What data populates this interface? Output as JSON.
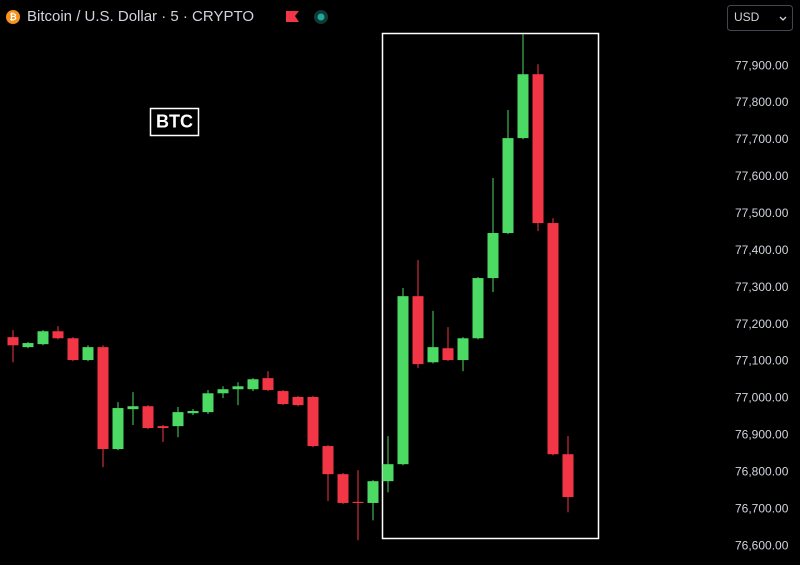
{
  "chart_data": {
    "type": "candlestick",
    "title": "Bitcoin / U.S. Dollar · 5 · CRYPTO",
    "annotation": "BTC",
    "currency": "USD",
    "up_color": "#4cd964",
    "down_color": "#f23645",
    "ylim": [
      76549,
      78079
    ],
    "yticks": [
      {
        "value": 76600,
        "label": "76,600.00"
      },
      {
        "value": 76700,
        "label": "76,700.00"
      },
      {
        "value": 76800,
        "label": "76,800.00"
      },
      {
        "value": 76900,
        "label": "76,900.00"
      },
      {
        "value": 77000,
        "label": "77,000.00"
      },
      {
        "value": 77100,
        "label": "77,100.00"
      },
      {
        "value": 77200,
        "label": "77,200.00"
      },
      {
        "value": 77300,
        "label": "77,300.00"
      },
      {
        "value": 77400,
        "label": "77,400.00"
      },
      {
        "value": 77500,
        "label": "77,500.00"
      },
      {
        "value": 77600,
        "label": "77,600.00"
      },
      {
        "value": 77700,
        "label": "77,700.00"
      },
      {
        "value": 77800,
        "label": "77,800.00"
      },
      {
        "value": 77900,
        "label": "77,900.00"
      }
    ],
    "open": [
      77166,
      77139,
      77147,
      77182,
      77163,
      77104,
      77139,
      76863,
      76971,
      76979,
      76925,
      76925,
      76960,
      76963,
      77014,
      77025,
      77025,
      77055,
      77020,
      77004,
      77004,
      76871,
      76795,
      76720,
      76717,
      76776,
      76822,
      77277,
      77098,
      77136,
      77104,
      77163,
      77326,
      77448,
      77705,
      77878,
      77475,
      76849
    ],
    "high": [
      77185,
      77153,
      77185,
      77196,
      77166,
      77144,
      77144,
      76990,
      77017,
      76982,
      76928,
      76977,
      76971,
      77023,
      77033,
      77044,
      77055,
      77074,
      77023,
      77007,
      77007,
      76874,
      76798,
      76806,
      76779,
      76898,
      77299,
      77375,
      77237,
      77193,
      77166,
      77329,
      77597,
      77781,
      77987,
      77905,
      77488,
      76898
    ],
    "low": [
      77098,
      77136,
      77144,
      77160,
      77101,
      77101,
      76814,
      76860,
      76928,
      76917,
      76882,
      76895,
      76955,
      76958,
      77001,
      76982,
      77020,
      77020,
      76982,
      76979,
      76868,
      76722,
      76714,
      76616,
      76670,
      76746,
      76819,
      77082,
      77095,
      77101,
      77074,
      77160,
      77288,
      77445,
      77702,
      77453,
      76846,
      76692
    ],
    "close": [
      77144,
      77150,
      77182,
      77163,
      77104,
      77139,
      76863,
      76974,
      76979,
      76920,
      76920,
      76963,
      76966,
      77014,
      77025,
      77033,
      77052,
      77023,
      76985,
      76982,
      76871,
      76795,
      76717,
      76717,
      76776,
      76822,
      77277,
      77093,
      77139,
      77104,
      77163,
      77326,
      77448,
      77705,
      77878,
      77475,
      76849,
      76733
    ]
  }
}
